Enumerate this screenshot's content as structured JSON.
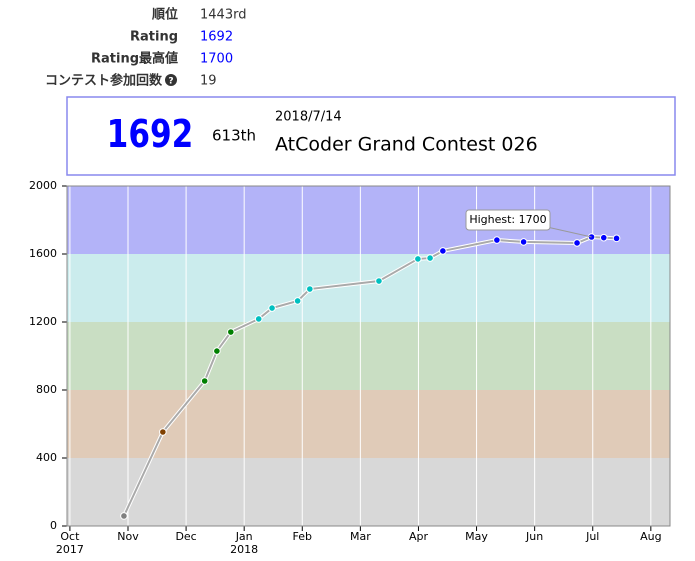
{
  "profile": {
    "rows": [
      {
        "label": "順位",
        "value": "1443rd"
      },
      {
        "label": "Rating",
        "value": "1692"
      },
      {
        "label": "Rating最高値",
        "value": "1700"
      },
      {
        "label": "コンテスト参加回数",
        "value": "19"
      }
    ]
  },
  "status": {
    "rating": "1692",
    "rank": "613th",
    "date": "2018/7/14",
    "contest": "AtCoder Grand Contest 026"
  },
  "chart_data": {
    "type": "line",
    "x": [
      10.93,
      11.6,
      12.32,
      12.53,
      12.77,
      13.25,
      13.48,
      13.92,
      14.13,
      15.32,
      15.99,
      16.2,
      16.42,
      17.35,
      17.81,
      18.73,
      18.98,
      19.19,
      19.41
    ],
    "series": [
      {
        "color": "#aaaaaa",
        "values": [
          59,
          553,
          853,
          1029,
          1141,
          1218,
          1282,
          1324,
          1394,
          1441,
          1571,
          1576,
          1618,
          1682,
          1671,
          1665,
          1700,
          1696,
          1692
        ]
      }
    ],
    "bands": [
      {
        "from": 0,
        "to": 400,
        "color": "#d8d8d8",
        "mark_color": "#808080"
      },
      {
        "from": 400,
        "to": 800,
        "color": "#e0cbb8",
        "mark_color": "#804000"
      },
      {
        "from": 800,
        "to": 1200,
        "color": "#c9dec3",
        "mark_color": "#008000"
      },
      {
        "from": 1200,
        "to": 1600,
        "color": "#cbeced",
        "mark_color": "#00c0c0"
      },
      {
        "from": 1600,
        "to": 2000,
        "color": "#b3b3f8",
        "mark_color": "#0000ff"
      }
    ],
    "annotation": {
      "text": "Highest: 1700",
      "point": 16
    },
    "xlim": [
      9.95,
      20.33
    ],
    "ylim": [
      0,
      2000
    ],
    "yticks": [
      0,
      400,
      800,
      1200,
      1600,
      2000
    ],
    "xticks": [
      {
        "value": 10,
        "label": "Oct",
        "year": "2017"
      },
      {
        "value": 11,
        "label": "Nov"
      },
      {
        "value": 12,
        "label": "Dec"
      },
      {
        "value": 13,
        "label": "Jan",
        "year": "2018"
      },
      {
        "value": 14,
        "label": "Feb"
      },
      {
        "value": 15,
        "label": "Mar"
      },
      {
        "value": 16,
        "label": "Apr"
      },
      {
        "value": 17,
        "label": "May"
      },
      {
        "value": 18,
        "label": "Jun"
      },
      {
        "value": 19,
        "label": "Jul"
      },
      {
        "value": 20,
        "label": "Aug"
      }
    ],
    "grid": true
  }
}
